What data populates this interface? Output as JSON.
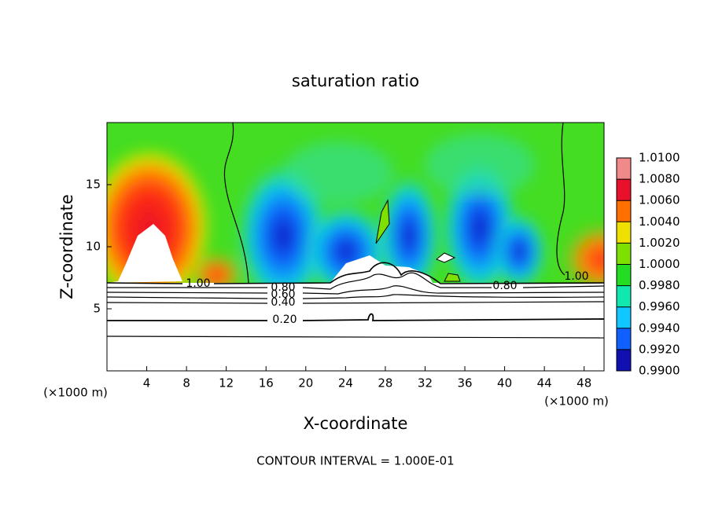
{
  "chart_data": {
    "type": "contour",
    "title": "saturation ratio",
    "x_label": "X-coordinate",
    "y_label": "Z-coordinate",
    "x_unit": "(×1000 m)",
    "y_unit": "(×1000 m)",
    "footer": "CONTOUR INTERVAL = 1.000E-01",
    "xlim": [
      0,
      50
    ],
    "xticks": [
      4,
      8,
      12,
      16,
      20,
      24,
      28,
      32,
      36,
      40,
      44,
      48
    ],
    "ylim": [
      0,
      20
    ],
    "yticks": [
      5,
      10,
      15
    ],
    "contour_labels": [
      "1.00",
      "0.80",
      "0.60",
      "0.40",
      "0.20",
      "0.80",
      "1.00"
    ],
    "colorbar": {
      "lim": [
        0.99,
        1.01
      ],
      "ticks": [
        {
          "value": 1.01,
          "label": "1.0100"
        },
        {
          "value": 1.008,
          "label": "1.0080"
        },
        {
          "value": 1.006,
          "label": "1.0060"
        },
        {
          "value": 1.004,
          "label": "1.0040"
        },
        {
          "value": 1.002,
          "label": "1.0020"
        },
        {
          "value": 1.0,
          "label": "1.0000"
        },
        {
          "value": 0.998,
          "label": "0.9980"
        },
        {
          "value": 0.996,
          "label": "0.9960"
        },
        {
          "value": 0.994,
          "label": "0.9940"
        },
        {
          "value": 0.992,
          "label": "0.9920"
        },
        {
          "value": 0.99,
          "label": "0.9900"
        }
      ],
      "colors": [
        "#f08a8a",
        "#e8102a",
        "#ff7000",
        "#f0e000",
        "#7ee000",
        "#22dd22",
        "#10e8b0",
        "#10c8ff",
        "#1060ff",
        "#1010b0"
      ]
    }
  }
}
